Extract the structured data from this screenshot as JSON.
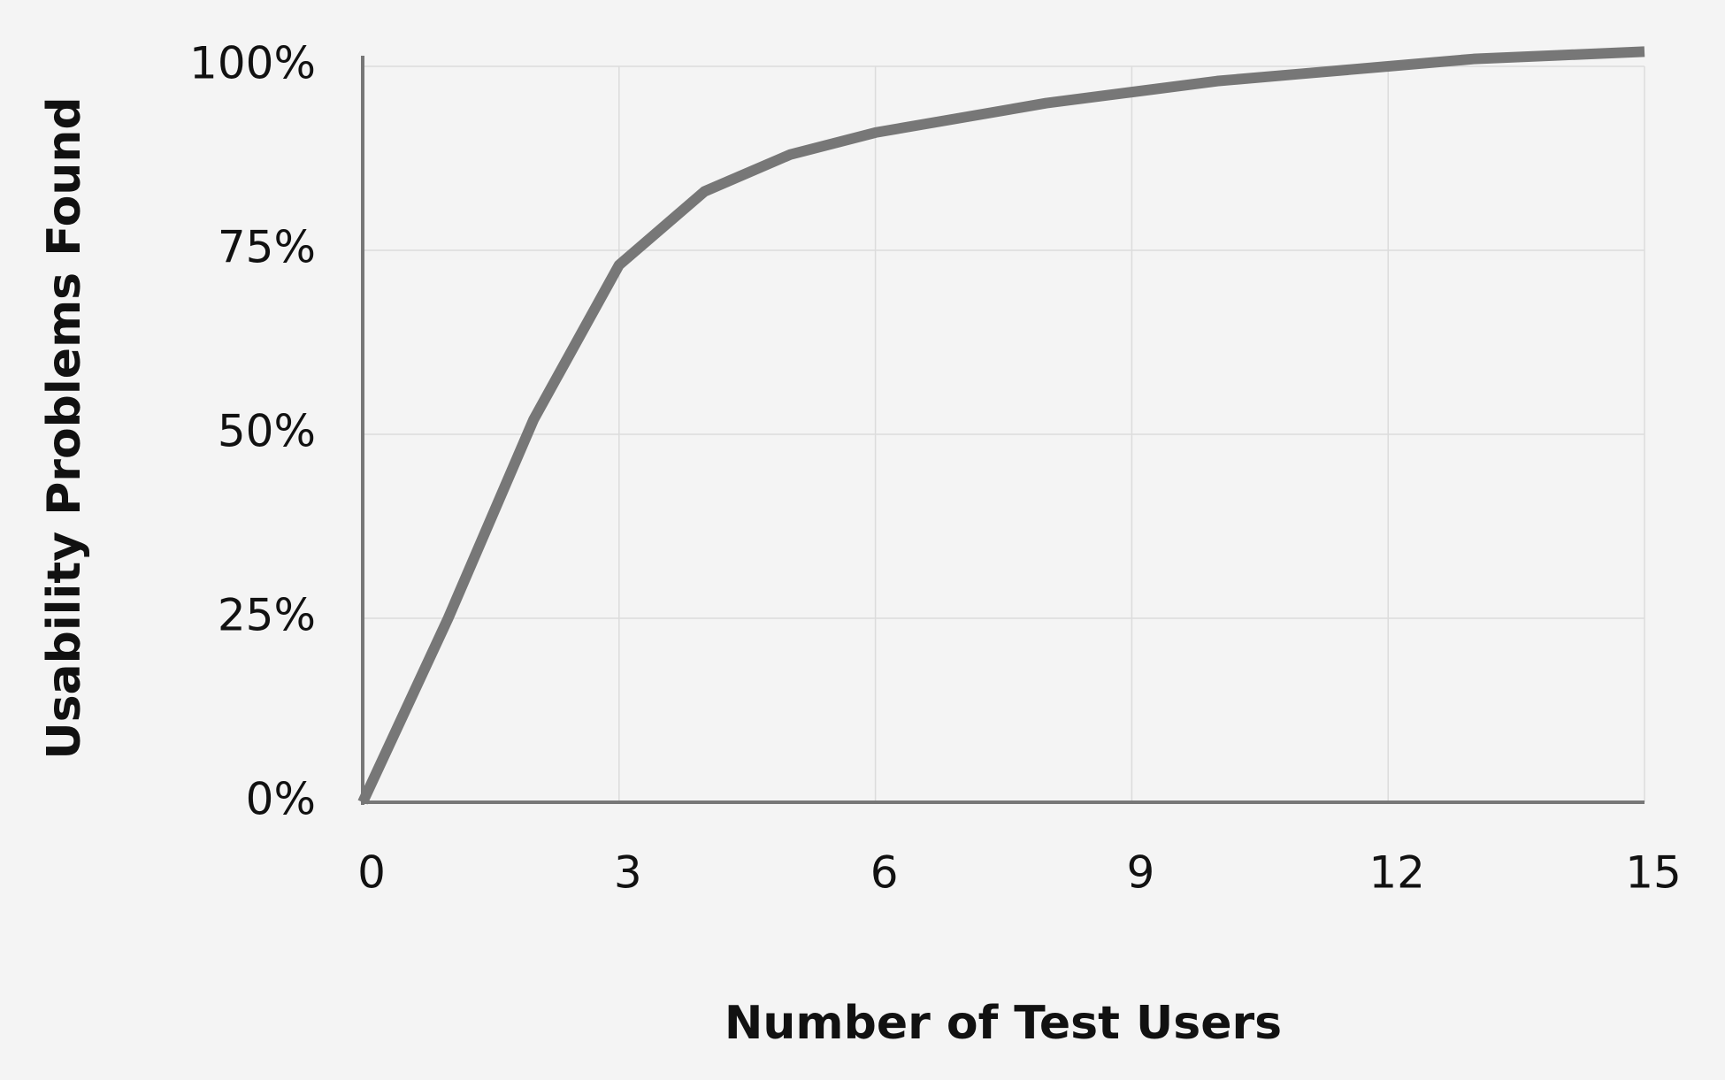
{
  "chart_data": {
    "type": "line",
    "x": [
      0,
      1,
      2,
      3,
      4,
      5,
      6,
      7,
      8,
      9,
      10,
      11,
      12,
      13,
      14,
      15
    ],
    "values": [
      0,
      25,
      52,
      73,
      83,
      88,
      91,
      93,
      95,
      96.5,
      98,
      99,
      100,
      101,
      101.5,
      102
    ],
    "color": "#777777",
    "xlabel": "Number of Test Users",
    "ylabel": "Usability Problems Found",
    "xlim": [
      0,
      15
    ],
    "xticks": [
      0,
      3,
      6,
      9,
      12,
      15
    ],
    "ylim": [
      0,
      100
    ],
    "yticks": [
      {
        "value": 0,
        "label": "0%"
      },
      {
        "value": 25,
        "label": "25%"
      },
      {
        "value": 50,
        "label": "50%"
      },
      {
        "value": 75,
        "label": "75%"
      },
      {
        "value": 100,
        "label": "100%"
      }
    ],
    "grid": true
  }
}
